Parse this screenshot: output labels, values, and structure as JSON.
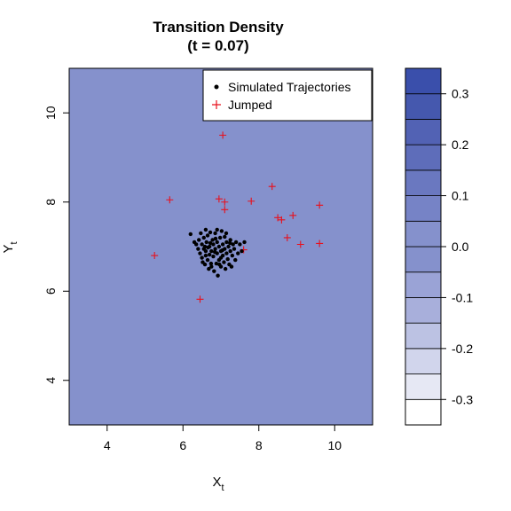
{
  "chart_data": {
    "type": "scatter",
    "title_line1": "Transition Density",
    "title_line2": "(t = 0.07)",
    "xlabel": "X",
    "xlabel_sub": "t",
    "ylabel": "Y",
    "ylabel_sub": "t",
    "xlim": [
      3,
      11
    ],
    "ylim": [
      3,
      11
    ],
    "x_ticks": [
      "4",
      "6",
      "8",
      "10"
    ],
    "y_ticks": [
      "4",
      "6",
      "8",
      "10"
    ],
    "legend": {
      "position": "top-right",
      "entries": [
        {
          "label": "Simulated Trajectories",
          "symbol": "dot",
          "color": "#000000"
        },
        {
          "label": "Jumped",
          "symbol": "plus",
          "color": "#e8101c"
        }
      ]
    },
    "fill_color": "#8591cc",
    "colorbar": {
      "levels": [
        -0.35,
        -0.3,
        -0.25,
        -0.2,
        -0.15,
        -0.1,
        -0.05,
        0.0,
        0.05,
        0.1,
        0.15,
        0.2,
        0.25,
        0.3,
        0.35
      ],
      "colors": [
        "#ffffff",
        "#e6e8f4",
        "#d1d5ec",
        "#bcc2e3",
        "#a8afdb",
        "#9aa3d6",
        "#8591cc",
        "#8591cc",
        "#7683c6",
        "#6a78c0",
        "#5e6dba",
        "#5262b4",
        "#4558ae",
        "#3a4fab"
      ],
      "tick_labels": [
        "-0.3",
        "-0.2",
        "-0.1",
        "0.0",
        "0.1",
        "0.2",
        "0.3"
      ],
      "tick_values": [
        -0.3,
        -0.2,
        -0.1,
        0.0,
        0.1,
        0.2,
        0.3
      ]
    },
    "series": [
      {
        "name": "Jumped",
        "color": "#e8101c",
        "points": [
          [
            7.05,
            9.5
          ],
          [
            5.65,
            8.05
          ],
          [
            6.95,
            8.07
          ],
          [
            7.1,
            8.0
          ],
          [
            7.1,
            7.83
          ],
          [
            7.8,
            8.02
          ],
          [
            8.35,
            8.35
          ],
          [
            8.5,
            7.65
          ],
          [
            8.6,
            7.6
          ],
          [
            8.9,
            7.7
          ],
          [
            9.6,
            7.93
          ],
          [
            8.75,
            7.2
          ],
          [
            9.1,
            7.05
          ],
          [
            9.6,
            7.07
          ],
          [
            7.6,
            6.93
          ],
          [
            5.25,
            6.8
          ],
          [
            6.45,
            5.82
          ]
        ]
      },
      {
        "name": "Simulated Trajectories",
        "color": "#000000",
        "points": [
          [
            6.2,
            7.28
          ],
          [
            6.3,
            7.1
          ],
          [
            6.35,
            7.05
          ],
          [
            6.4,
            6.95
          ],
          [
            6.42,
            7.15
          ],
          [
            6.45,
            6.85
          ],
          [
            6.47,
            7.3
          ],
          [
            6.5,
            6.75
          ],
          [
            6.5,
            7.05
          ],
          [
            6.55,
            6.95
          ],
          [
            6.55,
            7.2
          ],
          [
            6.58,
            6.6
          ],
          [
            6.6,
            7.38
          ],
          [
            6.6,
            6.9
          ],
          [
            6.62,
            7.1
          ],
          [
            6.65,
            6.7
          ],
          [
            6.65,
            7.25
          ],
          [
            6.68,
            6.5
          ],
          [
            6.7,
            7.0
          ],
          [
            6.7,
            6.82
          ],
          [
            6.72,
            7.32
          ],
          [
            6.75,
            6.9
          ],
          [
            6.75,
            6.55
          ],
          [
            6.78,
            7.15
          ],
          [
            6.8,
            6.78
          ],
          [
            6.8,
            7.05
          ],
          [
            6.82,
            6.45
          ],
          [
            6.85,
            6.95
          ],
          [
            6.85,
            7.3
          ],
          [
            6.88,
            6.62
          ],
          [
            6.9,
            7.1
          ],
          [
            6.9,
            6.85
          ],
          [
            6.92,
            6.35
          ],
          [
            6.95,
            7.0
          ],
          [
            6.95,
            6.7
          ],
          [
            6.98,
            7.2
          ],
          [
            7.0,
            6.9
          ],
          [
            7.0,
            6.55
          ],
          [
            7.02,
            7.35
          ],
          [
            7.05,
            6.8
          ],
          [
            7.05,
            7.05
          ],
          [
            7.08,
            6.65
          ],
          [
            7.1,
            6.95
          ],
          [
            7.1,
            7.22
          ],
          [
            7.12,
            6.5
          ],
          [
            7.15,
            6.85
          ],
          [
            7.15,
            7.1
          ],
          [
            7.18,
            6.72
          ],
          [
            7.2,
            7.0
          ],
          [
            7.22,
            6.6
          ],
          [
            7.25,
            6.9
          ],
          [
            7.25,
            7.15
          ],
          [
            7.28,
            6.55
          ],
          [
            7.3,
            6.8
          ],
          [
            7.32,
            7.05
          ],
          [
            7.35,
            6.95
          ],
          [
            7.38,
            6.7
          ],
          [
            7.4,
            7.1
          ],
          [
            7.45,
            6.85
          ],
          [
            7.5,
            7.05
          ],
          [
            7.55,
            6.9
          ],
          [
            7.62,
            7.1
          ],
          [
            6.52,
            6.65
          ],
          [
            6.58,
            7.0
          ],
          [
            6.66,
            6.98
          ],
          [
            6.74,
            6.62
          ],
          [
            6.84,
            6.88
          ],
          [
            6.86,
            7.18
          ],
          [
            6.96,
            6.6
          ],
          [
            7.04,
            6.92
          ],
          [
            7.14,
            7.3
          ],
          [
            7.24,
            7.08
          ],
          [
            6.6,
            6.8
          ],
          [
            6.9,
            7.38
          ],
          [
            7.0,
            6.75
          ],
          [
            6.72,
            7.08
          ]
        ]
      }
    ]
  }
}
